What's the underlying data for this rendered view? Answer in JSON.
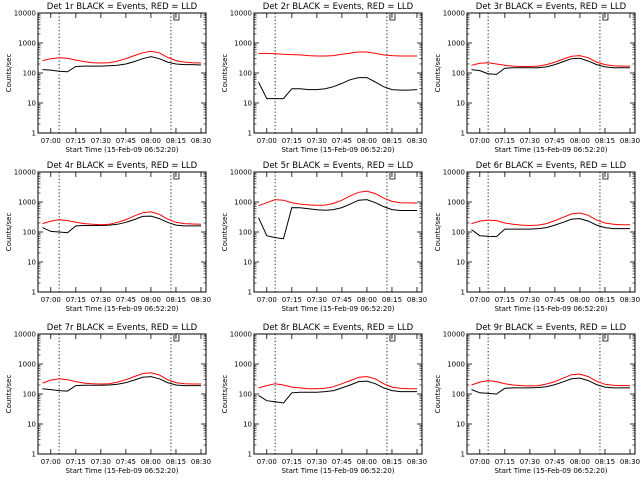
{
  "chart_data": [
    {
      "type": "line",
      "title": "Det 1r BLACK = Events, RED = LLD",
      "xlabel": "Start Time (15-Feb-09 06:52:20)",
      "ylabel": "Counts/sec",
      "yscale": "log",
      "ylim": [
        1,
        10000
      ],
      "yticks": [
        "1",
        "10",
        "100",
        "1000",
        "10000"
      ],
      "xticks": [
        "07:00",
        "07:15",
        "07:30",
        "07:45",
        "08:00",
        "08:15",
        "08:30"
      ],
      "markers": [
        "07:05",
        "08:12"
      ],
      "x": [
        "06:55",
        "07:00",
        "07:05",
        "07:10",
        "07:15",
        "07:20",
        "07:25",
        "07:30",
        "07:35",
        "07:40",
        "07:45",
        "07:50",
        "07:55",
        "08:00",
        "08:05",
        "08:10",
        "08:15",
        "08:20",
        "08:25",
        "08:30"
      ],
      "series": [
        {
          "name": "Events",
          "color": "#000000",
          "values": [
            130,
            125,
            115,
            110,
            165,
            170,
            170,
            170,
            175,
            180,
            200,
            240,
            300,
            350,
            300,
            230,
            200,
            190,
            190,
            185
          ]
        },
        {
          "name": "LLD",
          "color": "#ff0000",
          "values": [
            260,
            300,
            320,
            310,
            270,
            240,
            220,
            215,
            220,
            250,
            300,
            380,
            470,
            530,
            470,
            330,
            260,
            230,
            220,
            215
          ]
        }
      ]
    },
    {
      "type": "line",
      "title": "Det 2r BLACK = Events, RED = LLD",
      "xlabel": "Start Time (15-Feb-09 06:52:20)",
      "ylabel": "Counts/sec",
      "yscale": "log",
      "ylim": [
        1,
        10000
      ],
      "yticks": [
        "1",
        "10",
        "100",
        "1000",
        "10000"
      ],
      "xticks": [
        "07:00",
        "07:15",
        "07:30",
        "07:45",
        "08:00",
        "08:15",
        "08:30"
      ],
      "markers": [
        "07:05",
        "08:12"
      ],
      "x": [
        "06:55",
        "07:00",
        "07:05",
        "07:10",
        "07:15",
        "07:20",
        "07:25",
        "07:30",
        "07:35",
        "07:40",
        "07:45",
        "07:50",
        "07:55",
        "08:00",
        "08:05",
        "08:10",
        "08:15",
        "08:20",
        "08:25",
        "08:30"
      ],
      "series": [
        {
          "name": "Events",
          "color": "#000000",
          "values": [
            50,
            14,
            14,
            14,
            30,
            30,
            28,
            28,
            30,
            35,
            45,
            60,
            70,
            70,
            50,
            35,
            28,
            27,
            27,
            28
          ]
        },
        {
          "name": "LLD",
          "color": "#ff0000",
          "values": [
            450,
            450,
            440,
            420,
            410,
            400,
            380,
            370,
            370,
            380,
            420,
            460,
            500,
            500,
            450,
            400,
            380,
            370,
            370,
            370
          ]
        }
      ]
    },
    {
      "type": "line",
      "title": "Det 3r BLACK = Events, RED = LLD",
      "xlabel": "Start Time (15-Feb-09 06:52:20)",
      "ylabel": "Counts/sec",
      "yscale": "log",
      "ylim": [
        1,
        10000
      ],
      "yticks": [
        "1",
        "10",
        "100",
        "1000",
        "10000"
      ],
      "xticks": [
        "07:00",
        "07:15",
        "07:30",
        "07:45",
        "08:00",
        "08:15",
        "08:30"
      ],
      "markers": [
        "07:05",
        "08:12"
      ],
      "x": [
        "06:55",
        "07:00",
        "07:05",
        "07:10",
        "07:15",
        "07:20",
        "07:25",
        "07:30",
        "07:35",
        "07:40",
        "07:45",
        "07:50",
        "07:55",
        "08:00",
        "08:05",
        "08:10",
        "08:15",
        "08:20",
        "08:25",
        "08:30"
      ],
      "series": [
        {
          "name": "Events",
          "color": "#000000",
          "values": [
            130,
            120,
            95,
            90,
            145,
            150,
            150,
            150,
            150,
            160,
            190,
            240,
            300,
            310,
            250,
            190,
            160,
            150,
            150,
            150
          ]
        },
        {
          "name": "LLD",
          "color": "#ff0000",
          "values": [
            180,
            210,
            220,
            200,
            180,
            170,
            165,
            165,
            170,
            190,
            230,
            290,
            360,
            380,
            320,
            230,
            190,
            175,
            170,
            170
          ]
        }
      ]
    },
    {
      "type": "line",
      "title": "Det 4r BLACK = Events, RED = LLD",
      "xlabel": "Start Time (15-Feb-09 06:52:20)",
      "ylabel": "Counts/sec",
      "yscale": "log",
      "ylim": [
        1,
        10000
      ],
      "yticks": [
        "1",
        "10",
        "100",
        "1000",
        "10000"
      ],
      "xticks": [
        "07:00",
        "07:15",
        "07:30",
        "07:45",
        "08:00",
        "08:15",
        "08:30"
      ],
      "markers": [
        "07:05",
        "08:12"
      ],
      "x": [
        "06:55",
        "07:00",
        "07:05",
        "07:10",
        "07:15",
        "07:20",
        "07:25",
        "07:30",
        "07:35",
        "07:40",
        "07:45",
        "07:50",
        "07:55",
        "08:00",
        "08:05",
        "08:10",
        "08:15",
        "08:20",
        "08:25",
        "08:30"
      ],
      "series": [
        {
          "name": "Events",
          "color": "#000000",
          "values": [
            140,
            105,
            100,
            95,
            160,
            165,
            165,
            165,
            170,
            180,
            210,
            260,
            330,
            340,
            280,
            210,
            170,
            160,
            160,
            160
          ]
        },
        {
          "name": "LLD",
          "color": "#ff0000",
          "values": [
            190,
            230,
            260,
            240,
            210,
            190,
            180,
            175,
            180,
            210,
            260,
            340,
            440,
            470,
            390,
            270,
            210,
            190,
            185,
            180
          ]
        }
      ]
    },
    {
      "type": "line",
      "title": "Det 5r BLACK = Events, RED = LLD",
      "xlabel": "Start Time (15-Feb-09 06:52:20)",
      "ylabel": "Counts/sec",
      "yscale": "log",
      "ylim": [
        1,
        10000
      ],
      "yticks": [
        "1",
        "10",
        "100",
        "1000",
        "10000"
      ],
      "xticks": [
        "07:00",
        "07:15",
        "07:30",
        "07:45",
        "08:00",
        "08:15",
        "08:30"
      ],
      "markers": [
        "07:05",
        "08:12"
      ],
      "x": [
        "06:55",
        "07:00",
        "07:05",
        "07:10",
        "07:15",
        "07:20",
        "07:25",
        "07:30",
        "07:35",
        "07:40",
        "07:45",
        "07:50",
        "07:55",
        "08:00",
        "08:05",
        "08:10",
        "08:15",
        "08:20",
        "08:25",
        "08:30"
      ],
      "series": [
        {
          "name": "Events",
          "color": "#000000",
          "values": [
            300,
            75,
            65,
            60,
            650,
            640,
            600,
            550,
            530,
            560,
            650,
            850,
            1150,
            1200,
            950,
            700,
            560,
            520,
            520,
            520
          ]
        },
        {
          "name": "LLD",
          "color": "#ff0000",
          "values": [
            750,
            950,
            1200,
            1150,
            950,
            850,
            800,
            780,
            790,
            900,
            1150,
            1600,
            2100,
            2300,
            1900,
            1350,
            1050,
            950,
            930,
            920
          ]
        }
      ]
    },
    {
      "type": "line",
      "title": "Det 6r BLACK = Events, RED = LLD",
      "xlabel": "Start Time (15-Feb-09 06:52:20)",
      "ylabel": "Counts/sec",
      "yscale": "log",
      "ylim": [
        1,
        10000
      ],
      "yticks": [
        "1",
        "10",
        "100",
        "1000",
        "10000"
      ],
      "xticks": [
        "07:00",
        "07:15",
        "07:30",
        "07:45",
        "08:00",
        "08:15",
        "08:30"
      ],
      "markers": [
        "07:05",
        "08:12"
      ],
      "x": [
        "06:55",
        "07:00",
        "07:05",
        "07:10",
        "07:15",
        "07:20",
        "07:25",
        "07:30",
        "07:35",
        "07:40",
        "07:45",
        "07:50",
        "07:55",
        "08:00",
        "08:05",
        "08:10",
        "08:15",
        "08:20",
        "08:25",
        "08:30"
      ],
      "series": [
        {
          "name": "Events",
          "color": "#000000",
          "values": [
            120,
            75,
            72,
            70,
            125,
            125,
            125,
            125,
            130,
            140,
            170,
            210,
            270,
            280,
            230,
            170,
            140,
            130,
            130,
            130
          ]
        },
        {
          "name": "LLD",
          "color": "#ff0000",
          "values": [
            190,
            230,
            250,
            240,
            200,
            180,
            170,
            165,
            170,
            190,
            240,
            310,
            400,
            430,
            360,
            250,
            200,
            180,
            175,
            175
          ]
        }
      ]
    },
    {
      "type": "line",
      "title": "Det 7r BLACK = Events, RED = LLD",
      "xlabel": "Start Time (15-Feb-09 06:52:20)",
      "ylabel": "Counts/sec",
      "yscale": "log",
      "ylim": [
        1,
        10000
      ],
      "yticks": [
        "1",
        "10",
        "100",
        "1000",
        "10000"
      ],
      "xticks": [
        "07:00",
        "07:15",
        "07:30",
        "07:45",
        "08:00",
        "08:15",
        "08:30"
      ],
      "markers": [
        "07:05",
        "08:12"
      ],
      "x": [
        "06:55",
        "07:00",
        "07:05",
        "07:10",
        "07:15",
        "07:20",
        "07:25",
        "07:30",
        "07:35",
        "07:40",
        "07:45",
        "07:50",
        "07:55",
        "08:00",
        "08:05",
        "08:10",
        "08:15",
        "08:20",
        "08:25",
        "08:30"
      ],
      "series": [
        {
          "name": "Events",
          "color": "#000000",
          "values": [
            150,
            140,
            130,
            125,
            190,
            195,
            195,
            195,
            200,
            210,
            240,
            290,
            360,
            380,
            320,
            240,
            200,
            190,
            190,
            190
          ]
        },
        {
          "name": "LLD",
          "color": "#ff0000",
          "values": [
            230,
            290,
            320,
            300,
            260,
            230,
            220,
            215,
            220,
            250,
            300,
            380,
            480,
            510,
            430,
            300,
            240,
            220,
            215,
            215
          ]
        }
      ]
    },
    {
      "type": "line",
      "title": "Det 8r BLACK = Events, RED = LLD",
      "xlabel": "Start Time (15-Feb-09 06:52:20)",
      "ylabel": "Counts/sec",
      "yscale": "log",
      "ylim": [
        1,
        10000
      ],
      "yticks": [
        "1",
        "10",
        "100",
        "1000",
        "10000"
      ],
      "xticks": [
        "07:00",
        "07:15",
        "07:30",
        "07:45",
        "08:00",
        "08:15",
        "08:30"
      ],
      "markers": [
        "07:05",
        "08:12"
      ],
      "x": [
        "06:55",
        "07:00",
        "07:05",
        "07:10",
        "07:15",
        "07:20",
        "07:25",
        "07:30",
        "07:35",
        "07:40",
        "07:45",
        "07:50",
        "07:55",
        "08:00",
        "08:05",
        "08:10",
        "08:15",
        "08:20",
        "08:25",
        "08:30"
      ],
      "series": [
        {
          "name": "Events",
          "color": "#000000",
          "values": [
            90,
            60,
            55,
            50,
            110,
            115,
            115,
            115,
            120,
            130,
            160,
            200,
            260,
            270,
            220,
            160,
            130,
            120,
            120,
            120
          ]
        },
        {
          "name": "LLD",
          "color": "#ff0000",
          "values": [
            160,
            190,
            220,
            200,
            170,
            160,
            150,
            150,
            155,
            175,
            220,
            280,
            360,
            380,
            320,
            220,
            170,
            155,
            150,
            150
          ]
        }
      ]
    },
    {
      "type": "line",
      "title": "Det 9r BLACK = Events, RED = LLD",
      "xlabel": "Start Time (15-Feb-09 06:52:20)",
      "ylabel": "Counts/sec",
      "yscale": "log",
      "ylim": [
        1,
        10000
      ],
      "yticks": [
        "1",
        "10",
        "100",
        "1000",
        "10000"
      ],
      "xticks": [
        "07:00",
        "07:15",
        "07:30",
        "07:45",
        "08:00",
        "08:15",
        "08:30"
      ],
      "markers": [
        "07:05",
        "08:12"
      ],
      "x": [
        "06:55",
        "07:00",
        "07:05",
        "07:10",
        "07:15",
        "07:20",
        "07:25",
        "07:30",
        "07:35",
        "07:40",
        "07:45",
        "07:50",
        "07:55",
        "08:00",
        "08:05",
        "08:10",
        "08:15",
        "08:20",
        "08:25",
        "08:30"
      ],
      "series": [
        {
          "name": "Events",
          "color": "#000000",
          "values": [
            140,
            110,
            105,
            100,
            155,
            160,
            160,
            160,
            165,
            175,
            205,
            255,
            320,
            340,
            280,
            205,
            170,
            160,
            160,
            160
          ]
        },
        {
          "name": "LLD",
          "color": "#ff0000",
          "values": [
            200,
            250,
            280,
            260,
            220,
            200,
            190,
            185,
            190,
            215,
            260,
            340,
            440,
            460,
            380,
            265,
            210,
            195,
            190,
            190
          ]
        }
      ]
    }
  ]
}
